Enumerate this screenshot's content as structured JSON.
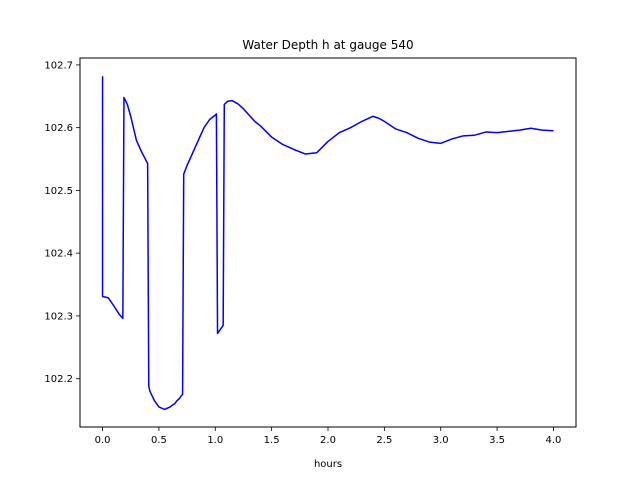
{
  "chart_data": {
    "type": "line",
    "title": "Water Depth h at gauge 540",
    "xlabel": "hours",
    "ylabel": "",
    "xlim": [
      -0.2,
      4.2
    ],
    "ylim": [
      102.123,
      102.711
    ],
    "xticks": [
      0.0,
      0.5,
      1.0,
      1.5,
      2.0,
      2.5,
      3.0,
      3.5,
      4.0
    ],
    "xtick_labels": [
      "0.0",
      "0.5",
      "1.0",
      "1.5",
      "2.0",
      "2.5",
      "3.0",
      "3.5",
      "4.0"
    ],
    "yticks": [
      102.2,
      102.3,
      102.4,
      102.5,
      102.6,
      102.7
    ],
    "ytick_labels": [
      "102.2",
      "102.3",
      "102.4",
      "102.5",
      "102.6",
      "102.7"
    ],
    "grid": false,
    "series": [
      {
        "color": "#0000ff",
        "x": [
          0.0,
          0.0,
          0.05,
          0.1,
          0.15,
          0.18,
          0.19,
          0.22,
          0.25,
          0.3,
          0.35,
          0.4,
          0.41,
          0.42,
          0.46,
          0.5,
          0.55,
          0.6,
          0.62,
          0.64,
          0.66,
          0.68,
          0.7,
          0.71,
          0.72,
          0.75,
          0.8,
          0.85,
          0.9,
          0.95,
          1.0,
          1.01,
          1.02,
          1.07,
          1.08,
          1.11,
          1.15,
          1.2,
          1.25,
          1.3,
          1.35,
          1.4,
          1.5,
          1.6,
          1.7,
          1.8,
          1.9,
          2.0,
          2.1,
          2.2,
          2.3,
          2.4,
          2.45,
          2.5,
          2.6,
          2.7,
          2.8,
          2.9,
          3.0,
          3.1,
          3.2,
          3.3,
          3.4,
          3.5,
          3.6,
          3.7,
          3.8,
          3.9,
          4.0
        ],
        "y": [
          102.682,
          102.331,
          102.329,
          102.316,
          102.302,
          102.296,
          102.648,
          102.637,
          102.618,
          102.58,
          102.56,
          102.543,
          102.188,
          102.18,
          102.165,
          102.155,
          102.151,
          102.155,
          102.158,
          102.16,
          102.165,
          102.168,
          102.173,
          102.175,
          102.526,
          102.54,
          102.56,
          102.58,
          102.6,
          102.613,
          102.62,
          102.622,
          102.272,
          102.285,
          102.637,
          102.642,
          102.643,
          102.638,
          102.63,
          102.62,
          102.61,
          102.603,
          102.585,
          102.573,
          102.565,
          102.558,
          102.56,
          102.578,
          102.592,
          102.6,
          102.61,
          102.618,
          102.615,
          102.61,
          102.598,
          102.592,
          102.583,
          102.577,
          102.575,
          102.582,
          102.587,
          102.588,
          102.593,
          102.592,
          102.594,
          102.596,
          102.599,
          102.596,
          102.595
        ]
      }
    ]
  }
}
